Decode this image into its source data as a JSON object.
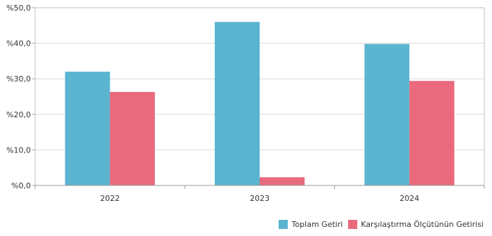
{
  "chart_data": {
    "type": "bar",
    "categories": [
      "2022",
      "2023",
      "2024"
    ],
    "series": [
      {
        "name": "Toplam Getiri",
        "values": [
          32.0,
          46.0,
          39.8
        ],
        "color": "#5bb4d0"
      },
      {
        "name": "Karşılaştırma Ölçütünün Getirisi",
        "values": [
          26.3,
          2.3,
          29.4
        ],
        "color": "#e86a7c"
      }
    ],
    "ylim": [
      0,
      50
    ],
    "yticks": [
      0,
      10,
      20,
      30,
      40,
      50
    ],
    "ytick_labels": [
      "%0,0",
      "%10,0",
      "%20,0",
      "%30,0",
      "%40,0",
      "%50,0"
    ],
    "grid": true,
    "legend": "bottom-right",
    "title": "",
    "xlabel": "",
    "ylabel": ""
  }
}
